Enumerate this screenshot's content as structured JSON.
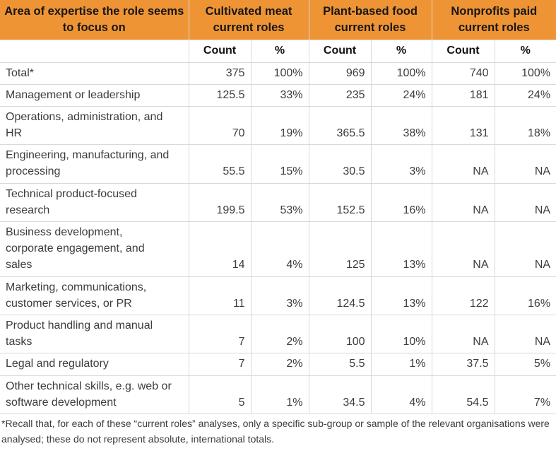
{
  "chart_data": {
    "type": "table",
    "column_groups": [
      "Area of expertise the role seems to focus on",
      "Cultivated meat current roles",
      "Plant-based food current roles",
      "Nonprofits paid current roles"
    ],
    "sub_headers": [
      "Count",
      "%",
      "Count",
      "%",
      "Count",
      "%"
    ],
    "rows": [
      {
        "label": "Total*",
        "values": [
          "375",
          "100%",
          "969",
          "100%",
          "740",
          "100%"
        ]
      },
      {
        "label": "Management or leadership",
        "values": [
          "125.5",
          "33%",
          "235",
          "24%",
          "181",
          "24%"
        ]
      },
      {
        "label": "Operations, administration, and HR",
        "values": [
          "70",
          "19%",
          "365.5",
          "38%",
          "131",
          "18%"
        ]
      },
      {
        "label": "Engineering, manufacturing, and processing",
        "values": [
          "55.5",
          "15%",
          "30.5",
          "3%",
          "NA",
          "NA"
        ]
      },
      {
        "label": "Technical product-focused research",
        "values": [
          "199.5",
          "53%",
          "152.5",
          "16%",
          "NA",
          "NA"
        ]
      },
      {
        "label": "Business development, corporate engagement, and sales",
        "values": [
          "14",
          "4%",
          "125",
          "13%",
          "NA",
          "NA"
        ]
      },
      {
        "label": "Marketing, communications, customer services, or PR",
        "values": [
          "11",
          "3%",
          "124.5",
          "13%",
          "122",
          "16%"
        ]
      },
      {
        "label": "Product handling and manual tasks",
        "values": [
          "7",
          "2%",
          "100",
          "10%",
          "NA",
          "NA"
        ]
      },
      {
        "label": "Legal and regulatory",
        "values": [
          "7",
          "2%",
          "5.5",
          "1%",
          "37.5",
          "5%"
        ]
      },
      {
        "label": "Other technical skills, e.g. web or software development",
        "values": [
          "5",
          "1%",
          "34.5",
          "4%",
          "54.5",
          "7%"
        ]
      }
    ],
    "footnote": "*Recall that, for each of these “current roles” analyses, only a specific sub-group or sample of the relevant organisations were analysed; these do not represent absolute, international totals."
  },
  "colors": {
    "header_bg": "#ef9435",
    "header_text": "#161616",
    "body_text": "#3c3c3c",
    "border": "#d9d9d9"
  }
}
